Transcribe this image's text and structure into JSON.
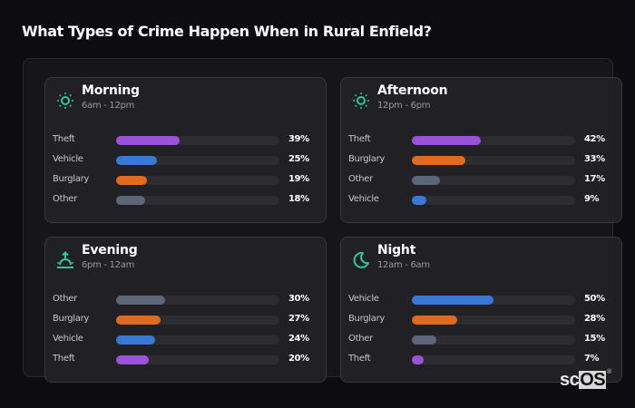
{
  "page": {
    "title": "What Types of Crime Happen When in Rural Enfield?"
  },
  "colors": {
    "theft": "#9a52d9",
    "vehicle": "#3a78d8",
    "burglary": "#e06b1e",
    "other": "#5c6678",
    "icon": "#2ec79a",
    "track": "#2d2c31"
  },
  "cards": [
    {
      "title": "Morning",
      "subtitle": "6am - 12pm",
      "icon": "sun-icon",
      "rows": [
        {
          "label": "Theft",
          "value": 39,
          "display": "39%"
        },
        {
          "label": "Vehicle",
          "value": 25,
          "display": "25%"
        },
        {
          "label": "Burglary",
          "value": 19,
          "display": "19%"
        },
        {
          "label": "Other",
          "value": 18,
          "display": "18%"
        }
      ]
    },
    {
      "title": "Afternoon",
      "subtitle": "12pm - 6pm",
      "icon": "sun-icon",
      "rows": [
        {
          "label": "Theft",
          "value": 42,
          "display": "42%"
        },
        {
          "label": "Burglary",
          "value": 33,
          "display": "33%"
        },
        {
          "label": "Other",
          "value": 17,
          "display": "17%"
        },
        {
          "label": "Vehicle",
          "value": 9,
          "display": "9%"
        }
      ]
    },
    {
      "title": "Evening",
      "subtitle": "6pm - 12am",
      "icon": "sunset-icon",
      "rows": [
        {
          "label": "Other",
          "value": 30,
          "display": "30%"
        },
        {
          "label": "Burglary",
          "value": 27,
          "display": "27%"
        },
        {
          "label": "Vehicle",
          "value": 24,
          "display": "24%"
        },
        {
          "label": "Theft",
          "value": 20,
          "display": "20%"
        }
      ]
    },
    {
      "title": "Night",
      "subtitle": "12am - 6am",
      "icon": "moon-icon",
      "rows": [
        {
          "label": "Vehicle",
          "value": 50,
          "display": "50%"
        },
        {
          "label": "Burglary",
          "value": 28,
          "display": "28%"
        },
        {
          "label": "Other",
          "value": 15,
          "display": "15%"
        },
        {
          "label": "Theft",
          "value": 7,
          "display": "7%"
        }
      ]
    }
  ],
  "logo": {
    "sc": "sc",
    "os": "OS",
    "reg": "®"
  },
  "chart_data": {
    "type": "bar",
    "title": "What Types of Crime Happen When in Rural Enfield?",
    "orientation": "horizontal",
    "unit": "%",
    "xlim": [
      0,
      100
    ],
    "grid": false,
    "legend": "none",
    "panels": [
      {
        "title": "Morning",
        "subtitle": "6am - 12pm",
        "categories": [
          "Theft",
          "Vehicle",
          "Burglary",
          "Other"
        ],
        "values": [
          39,
          25,
          19,
          18
        ]
      },
      {
        "title": "Afternoon",
        "subtitle": "12pm - 6pm",
        "categories": [
          "Theft",
          "Burglary",
          "Other",
          "Vehicle"
        ],
        "values": [
          42,
          33,
          17,
          9
        ]
      },
      {
        "title": "Evening",
        "subtitle": "6pm - 12am",
        "categories": [
          "Other",
          "Burglary",
          "Vehicle",
          "Theft"
        ],
        "values": [
          30,
          27,
          24,
          20
        ]
      },
      {
        "title": "Night",
        "subtitle": "12am - 6am",
        "categories": [
          "Vehicle",
          "Burglary",
          "Other",
          "Theft"
        ],
        "values": [
          50,
          28,
          15,
          7
        ]
      }
    ],
    "series_colors": {
      "Theft": "#9a52d9",
      "Vehicle": "#3a78d8",
      "Burglary": "#e06b1e",
      "Other": "#5c6678"
    }
  }
}
